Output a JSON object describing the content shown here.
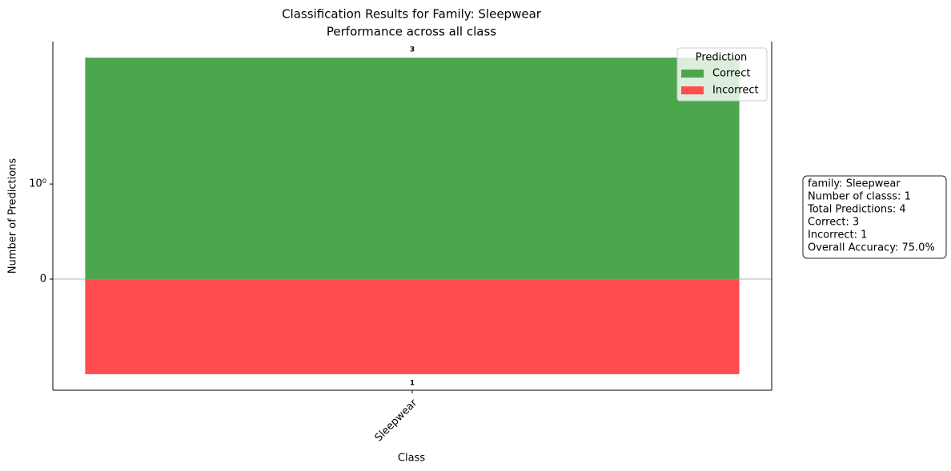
{
  "chart_data": {
    "type": "bar",
    "title": "Classification Results for Family: Sleepwear",
    "subtitle": "Performance across all class",
    "x_label": "Class",
    "y_label": "Number of Predictions",
    "categories": [
      "Sleepwear"
    ],
    "series": [
      {
        "name": "Correct",
        "color": "#4ca64c",
        "values": [
          3
        ],
        "direction": "up"
      },
      {
        "name": "Incorrect",
        "color": "#ff4c4c",
        "values": [
          1
        ],
        "direction": "down"
      }
    ],
    "yscale": "symlog",
    "linthresh": 1,
    "ylim": [
      -1.15,
      3.45
    ],
    "yticks": [
      0,
      {
        "value": 1,
        "label": "10⁰"
      }
    ],
    "legend_title": "Prediction",
    "legend": "upper right",
    "info_box": [
      "family: Sleepwear",
      "Number of classs: 1",
      "Total Predictions: 4",
      "Correct: 3",
      "Incorrect: 1",
      "Overall Accuracy: 75.0%"
    ]
  }
}
